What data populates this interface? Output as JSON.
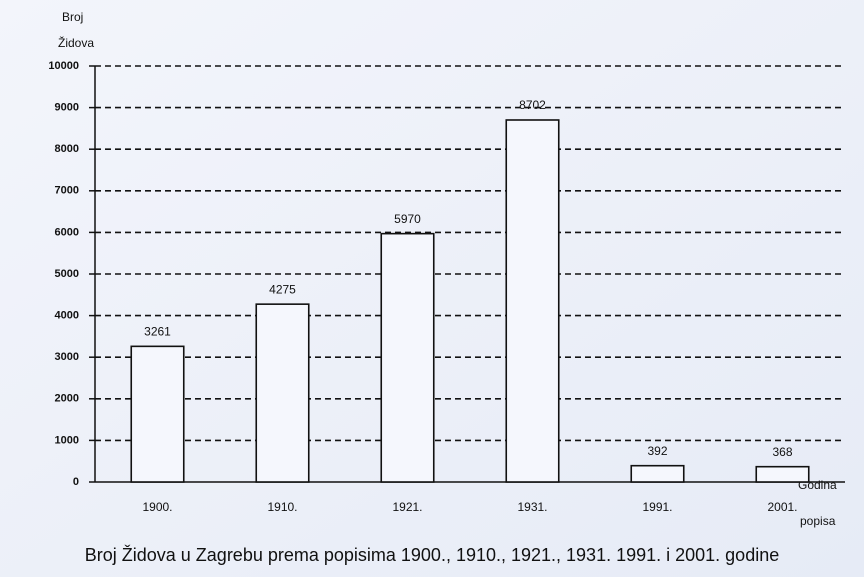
{
  "chart_data": {
    "type": "bar",
    "ylabel": [
      "Broj",
      "Židova"
    ],
    "xlabel": [
      "Godina",
      "popisa"
    ],
    "caption": "Broj Židova u Zagrebu prema popisima 1900., 1910., 1921., 1931. 1991. i 2001. godine",
    "categories": [
      "1900.",
      "1910.",
      "1921.",
      "1931.",
      "1991.",
      "2001."
    ],
    "values": [
      3261,
      4275,
      5970,
      8702,
      392,
      368
    ],
    "color": "#f5f7fd",
    "ylim": [
      0,
      10000
    ],
    "yticks": [
      0,
      1000,
      2000,
      3000,
      4000,
      5000,
      6000,
      7000,
      8000,
      9000,
      10000
    ],
    "grid": true
  }
}
